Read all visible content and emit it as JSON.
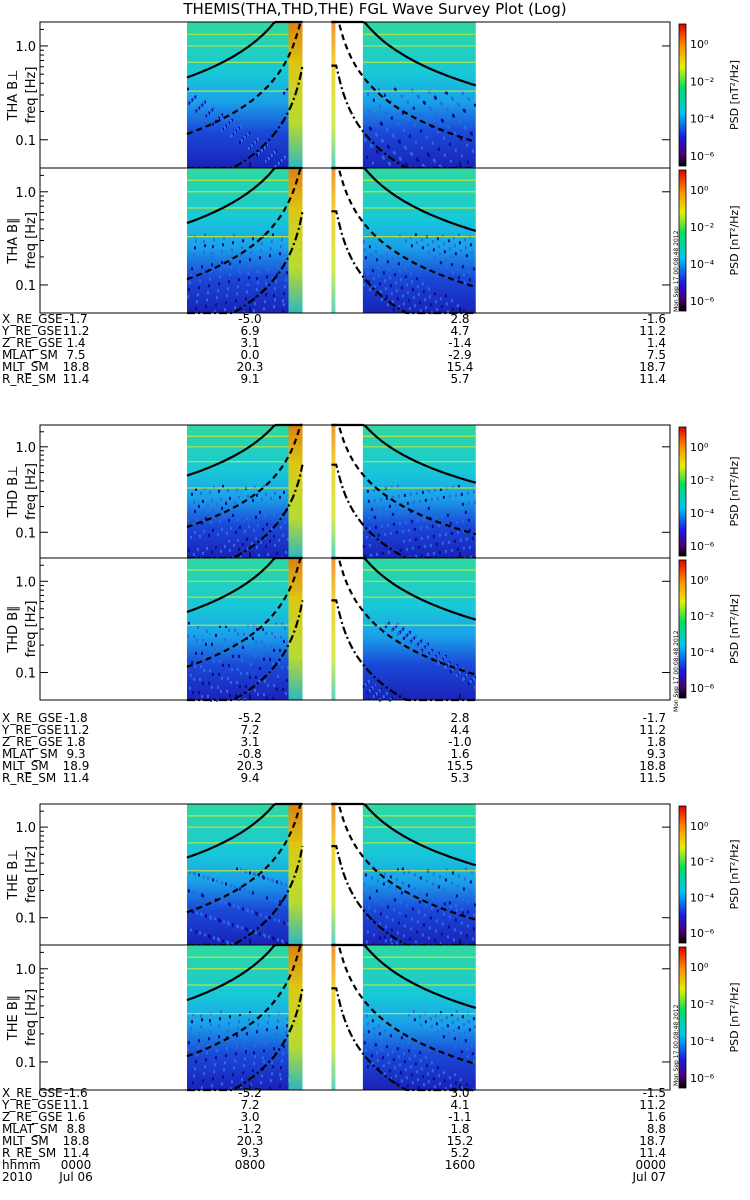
{
  "title": "THEMIS(THA,THD,THE) FGL Wave Survey Plot (Log)",
  "freq_label": "freq [Hz]",
  "psd_label": "PSD [nT²/Hz]",
  "freq_ticks": [
    "1.0",
    "0.1"
  ],
  "psd_ticks": [
    "10⁰",
    "10⁻²",
    "10⁻⁴",
    "10⁻⁶"
  ],
  "stamp": "Mon Sep 17 00:08:48 2012",
  "colors": {
    "background": "#ffffff",
    "gap": "#ffffff",
    "curve": "#000000"
  },
  "probes": [
    {
      "id": "THA",
      "panels": [
        "THA B⊥",
        "THA B∥"
      ],
      "ephem": [
        {
          "label": "X_RE_GSE",
          "values": [
            "-1.7",
            "-5.0",
            "2.8",
            "-1.6"
          ]
        },
        {
          "label": "Y_RE_GSE",
          "values": [
            "11.2",
            "6.9",
            "4.7",
            "11.2"
          ]
        },
        {
          "label": "Z_RE_GSE",
          "values": [
            "1.4",
            "3.1",
            "-1.4",
            "1.4"
          ]
        },
        {
          "label": "MLAT_SM",
          "values": [
            "7.5",
            "0.0",
            "-2.9",
            "7.5"
          ]
        },
        {
          "label": "MLT_SM",
          "values": [
            "18.8",
            "20.3",
            "15.4",
            "18.7"
          ]
        },
        {
          "label": "R_RE_SM",
          "values": [
            "11.4",
            "9.1",
            "5.7",
            "11.4"
          ]
        }
      ]
    },
    {
      "id": "THD",
      "panels": [
        "THD B⊥",
        "THD B∥"
      ],
      "ephem": [
        {
          "label": "X_RE_GSE",
          "values": [
            "-1.8",
            "-5.2",
            "2.8",
            "-1.7"
          ]
        },
        {
          "label": "Y_RE_GSE",
          "values": [
            "11.2",
            "7.2",
            "4.4",
            "11.2"
          ]
        },
        {
          "label": "Z_RE_GSE",
          "values": [
            "1.8",
            "3.1",
            "-1.0",
            "1.8"
          ]
        },
        {
          "label": "MLAT_SM",
          "values": [
            "9.3",
            "-0.8",
            "1.6",
            "9.3"
          ]
        },
        {
          "label": "MLT_SM",
          "values": [
            "18.9",
            "20.3",
            "15.5",
            "18.8"
          ]
        },
        {
          "label": "R_RE_SM",
          "values": [
            "11.4",
            "9.4",
            "5.3",
            "11.5"
          ]
        }
      ]
    },
    {
      "id": "THE",
      "panels": [
        "THE B⊥",
        "THE B∥"
      ],
      "ephem": [
        {
          "label": "X_RE_GSE",
          "values": [
            "-1.6",
            "-5.2",
            "3.0",
            "-1.5"
          ]
        },
        {
          "label": "Y_RE_GSE",
          "values": [
            "11.1",
            "7.2",
            "4.1",
            "11.2"
          ]
        },
        {
          "label": "Z_RE_GSE",
          "values": [
            "1.6",
            "3.0",
            "-1.1",
            "1.6"
          ]
        },
        {
          "label": "MLAT_SM",
          "values": [
            "8.8",
            "-1.2",
            "1.8",
            "8.8"
          ]
        },
        {
          "label": "MLT_SM",
          "values": [
            "18.8",
            "20.3",
            "15.2",
            "18.7"
          ]
        },
        {
          "label": "R_RE_SM",
          "values": [
            "11.4",
            "9.3",
            "5.2",
            "11.4"
          ]
        },
        {
          "label": "hhmm",
          "values": [
            "0000",
            "0800",
            "1600",
            "0000"
          ]
        },
        {
          "label": "2010",
          "values": [
            "Jul 06",
            "",
            "",
            "Jul 07"
          ]
        }
      ]
    }
  ],
  "chart_data": {
    "type": "heatmap",
    "title": "THEMIS(THA,THD,THE) FGL Wave Survey Plot (Log)",
    "ylabel": "freq [Hz]",
    "xlabel": "hhmm",
    "colorbar_label": "PSD [nT²/Hz]",
    "x_ticks": [
      "0000",
      "0800",
      "1600",
      "0000"
    ],
    "y_ticks": [
      1.0,
      0.1
    ],
    "y_scale": "log",
    "ylim": [
      0.05,
      1.8
    ],
    "colorbar_ticks": [
      "10⁰",
      "10⁻²",
      "10⁻⁴",
      "10⁻⁶"
    ],
    "colorbar_range": [
      1e-07,
      10
    ],
    "data_coverage_hours": [
      [
        5.6,
        10.0
      ],
      [
        12.3,
        16.6
      ]
    ],
    "data_gap_hours": [
      10.0,
      11.1
    ],
    "panels": [
      "THA B⊥",
      "THA B∥",
      "THD B⊥",
      "THD B∥",
      "THE B⊥",
      "THE B∥"
    ]
  }
}
